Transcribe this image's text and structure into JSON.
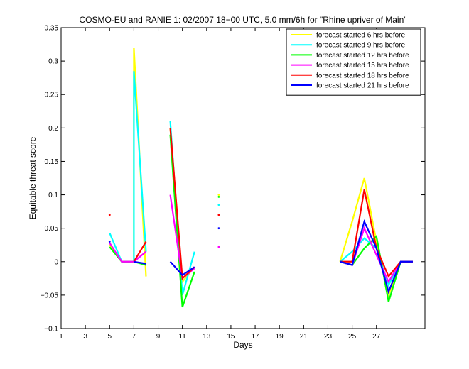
{
  "chart_data": {
    "type": "line",
    "title": "COSMO-EU and RANIE 1: 02/2007 18−00 UTC, 5.0 mm/6h for \"Rhine upriver of Main\"",
    "xlabel": "Days",
    "ylabel": "Equitable threat score",
    "xlim": [
      1,
      31
    ],
    "ylim": [
      -0.1,
      0.35
    ],
    "x_ticks": [
      1,
      3,
      5,
      7,
      9,
      11,
      13,
      15,
      17,
      19,
      21,
      23,
      25,
      27
    ],
    "y_ticks": [
      -0.1,
      -0.05,
      0,
      0.05,
      0.1,
      0.15,
      0.2,
      0.25,
      0.3,
      0.35
    ],
    "y_tick_labels": [
      "−0.1",
      "−0.05",
      "0",
      "0.05",
      "0.1",
      "0.15",
      "0.2",
      "0.25",
      "0.3",
      "0.35"
    ],
    "grid": false,
    "legend_position": "top-right",
    "series": [
      {
        "name": "forecast started 6 hrs before",
        "color": "#ffff00",
        "points": [
          [
            5,
            0.025
          ],
          [
            6,
            0.0
          ],
          [
            7,
            0.0
          ],
          [
            7,
            0.32
          ],
          [
            8,
            -0.022
          ],
          [
            10,
            0.2
          ],
          [
            11,
            -0.03
          ],
          [
            12,
            -0.008
          ],
          [
            14,
            0.1
          ],
          [
            24,
            0.0
          ],
          [
            25,
            0.06
          ],
          [
            26,
            0.125
          ],
          [
            27,
            0.03
          ],
          [
            28,
            -0.05
          ],
          [
            29,
            0.0
          ],
          [
            30,
            0.0
          ]
        ]
      },
      {
        "name": "forecast started 9 hrs before",
        "color": "#00ffff",
        "points": [
          [
            5,
            0.043
          ],
          [
            6,
            0.0
          ],
          [
            7,
            0.0
          ],
          [
            7,
            0.285
          ],
          [
            8,
            0.015
          ],
          [
            10,
            0.21
          ],
          [
            11,
            -0.05
          ],
          [
            12,
            0.015
          ],
          [
            14,
            0.085
          ],
          [
            24,
            0.0
          ],
          [
            25,
            0.015
          ],
          [
            26,
            0.035
          ],
          [
            27,
            0.02
          ],
          [
            28,
            -0.035
          ],
          [
            29,
            0.0
          ],
          [
            30,
            0.0
          ]
        ]
      },
      {
        "name": "forecast started 12 hrs before",
        "color": "#00ff00",
        "points": [
          [
            5,
            0.022
          ],
          [
            6,
            0.0
          ],
          [
            7,
            0.0
          ],
          [
            8,
            -0.005
          ],
          [
            10,
            0.19
          ],
          [
            11,
            -0.068
          ],
          [
            12,
            -0.015
          ],
          [
            14,
            0.097
          ],
          [
            24,
            0.0
          ],
          [
            25,
            -0.005
          ],
          [
            26,
            0.02
          ],
          [
            27,
            0.038
          ],
          [
            28,
            -0.06
          ],
          [
            29,
            0.0
          ],
          [
            30,
            0.0
          ]
        ]
      },
      {
        "name": "forecast started 15 hrs before",
        "color": "#ff00ff",
        "points": [
          [
            5,
            0.028
          ],
          [
            6,
            0.0
          ],
          [
            7,
            0.0
          ],
          [
            8,
            0.015
          ],
          [
            10,
            0.1
          ],
          [
            11,
            -0.025
          ],
          [
            12,
            -0.01
          ],
          [
            14,
            0.022
          ],
          [
            24,
            0.0
          ],
          [
            25,
            -0.005
          ],
          [
            26,
            0.05
          ],
          [
            27,
            0.01
          ],
          [
            28,
            -0.03
          ],
          [
            29,
            0.0
          ],
          [
            30,
            0.0
          ]
        ]
      },
      {
        "name": "forecast started 18 hrs before",
        "color": "#ff0000",
        "points": [
          [
            5,
            0.07
          ],
          [
            7,
            0.0
          ],
          [
            8,
            0.03
          ],
          [
            10,
            0.2
          ],
          [
            11,
            -0.025
          ],
          [
            12,
            -0.008
          ],
          [
            14,
            0.07
          ],
          [
            24,
            0.0
          ],
          [
            25,
            0.0
          ],
          [
            26,
            0.108
          ],
          [
            27,
            0.02
          ],
          [
            28,
            -0.022
          ],
          [
            29,
            0.0
          ],
          [
            30,
            0.0
          ]
        ]
      },
      {
        "name": "forecast started 21 hrs before",
        "color": "#0000ff",
        "points": [
          [
            5,
            0.03
          ],
          [
            7,
            0.0
          ],
          [
            8,
            -0.003
          ],
          [
            10,
            0.0
          ],
          [
            11,
            -0.02
          ],
          [
            12,
            -0.008
          ],
          [
            14,
            0.05
          ],
          [
            24,
            0.0
          ],
          [
            25,
            -0.005
          ],
          [
            26,
            0.06
          ],
          [
            27,
            0.02
          ],
          [
            28,
            -0.045
          ],
          [
            29,
            0.0
          ],
          [
            30,
            0.0
          ]
        ]
      }
    ]
  }
}
